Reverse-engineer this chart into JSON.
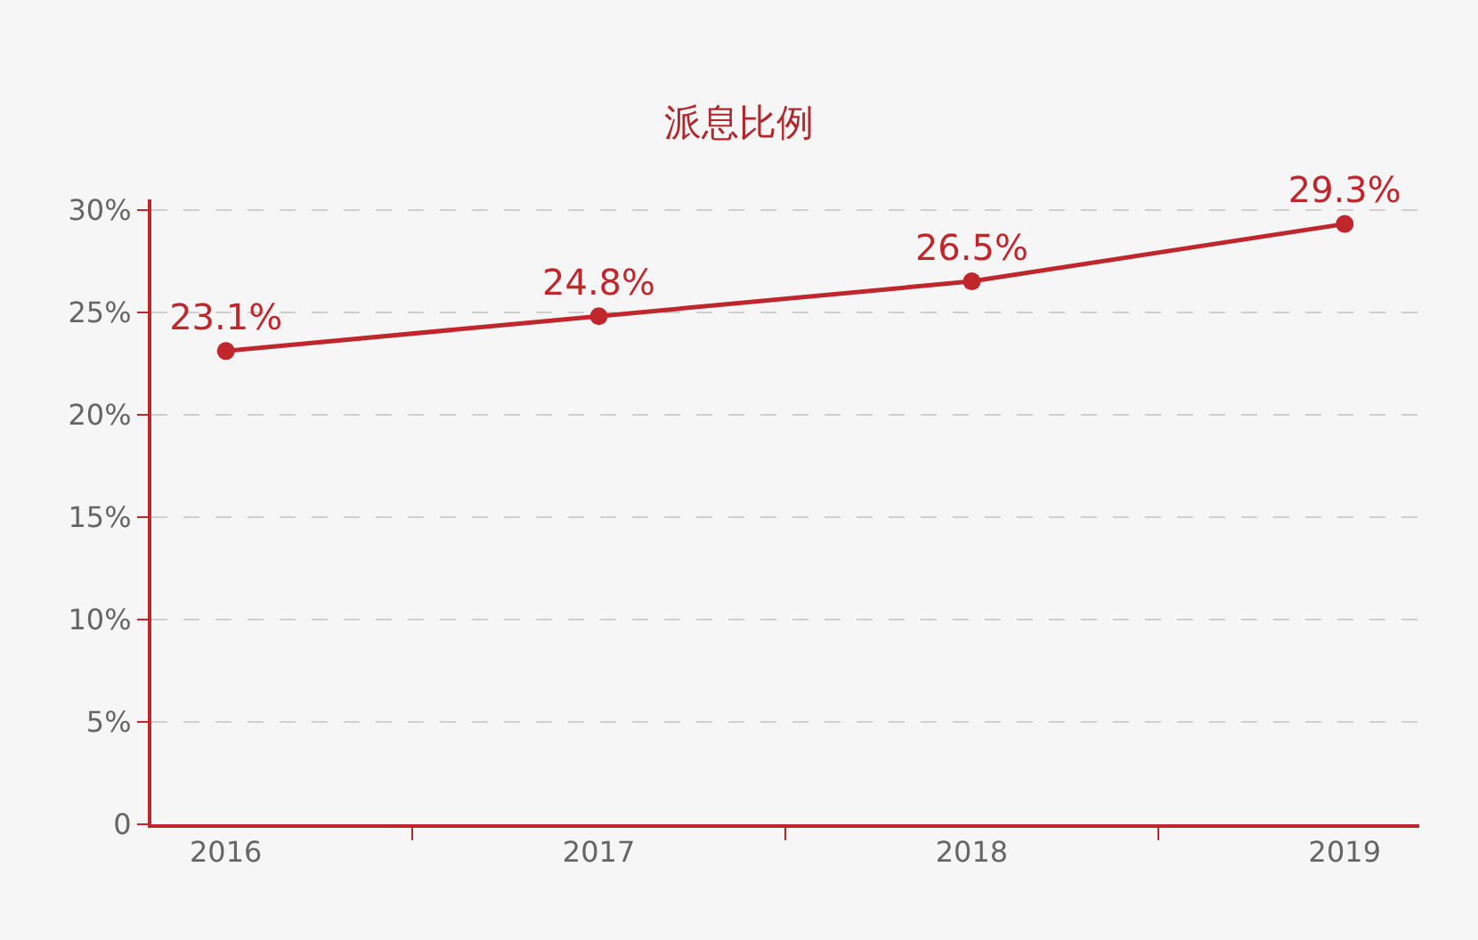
{
  "chart_data": {
    "type": "line",
    "title": "派息比例",
    "categories": [
      "2016",
      "2017",
      "2018",
      "2019"
    ],
    "series": [
      {
        "color": "#c0272d",
        "values": [
          23.1,
          24.8,
          26.5,
          29.3
        ],
        "value_labels": [
          "23.1%",
          "24.8%",
          "26.5%",
          "29.3%"
        ]
      }
    ],
    "ylim": [
      0,
      30.5
    ],
    "yticks": [
      0,
      {
        "value": 5,
        "label": "5%"
      },
      {
        "value": 10,
        "label": "10%"
      },
      {
        "value": 15,
        "label": "15%"
      },
      {
        "value": 20,
        "label": "20%"
      },
      {
        "value": 25,
        "label": "25%"
      },
      {
        "value": 30,
        "label": "30%"
      }
    ],
    "grid": "y",
    "marker": "circle",
    "line_style": "solid"
  }
}
